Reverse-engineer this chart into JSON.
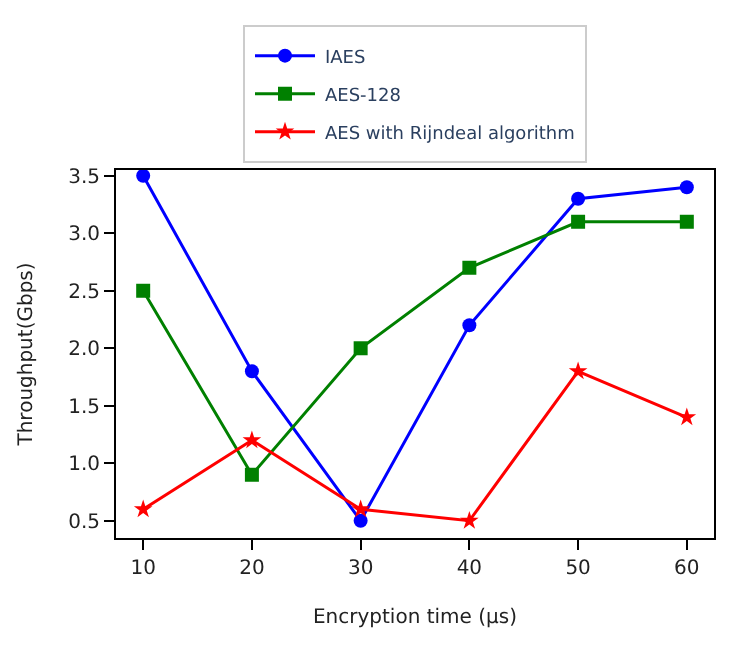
{
  "chart_data": {
    "type": "line",
    "xlabel": "Encryption time (μs)",
    "ylabel": "Throughput(Gbps)",
    "x": [
      10,
      20,
      30,
      40,
      50,
      60
    ],
    "series": [
      {
        "name": "IAES",
        "color": "#0000ff",
        "marker": "circle",
        "values": [
          3.5,
          1.8,
          0.5,
          2.2,
          3.3,
          3.4
        ]
      },
      {
        "name": "AES-128",
        "color": "#008000",
        "marker": "square",
        "values": [
          2.5,
          0.9,
          2.0,
          2.7,
          3.1,
          3.1
        ]
      },
      {
        "name": "AES with Rijndeal algorithm",
        "color": "#ff0000",
        "marker": "star",
        "values": [
          0.6,
          1.2,
          0.6,
          0.5,
          1.8,
          1.4
        ]
      }
    ],
    "xlim": [
      7.5,
      62.5
    ],
    "xticks": [
      10,
      20,
      30,
      40,
      50,
      60
    ],
    "ylim": [
      0.35,
      3.55
    ],
    "yticks": [
      0.5,
      {
        "value": 1,
        "label": "1.0"
      },
      1.5,
      {
        "value": 2,
        "label": "2.0"
      },
      2.5,
      {
        "value": 3,
        "label": "3.0"
      },
      3.5
    ],
    "legend": "top"
  }
}
